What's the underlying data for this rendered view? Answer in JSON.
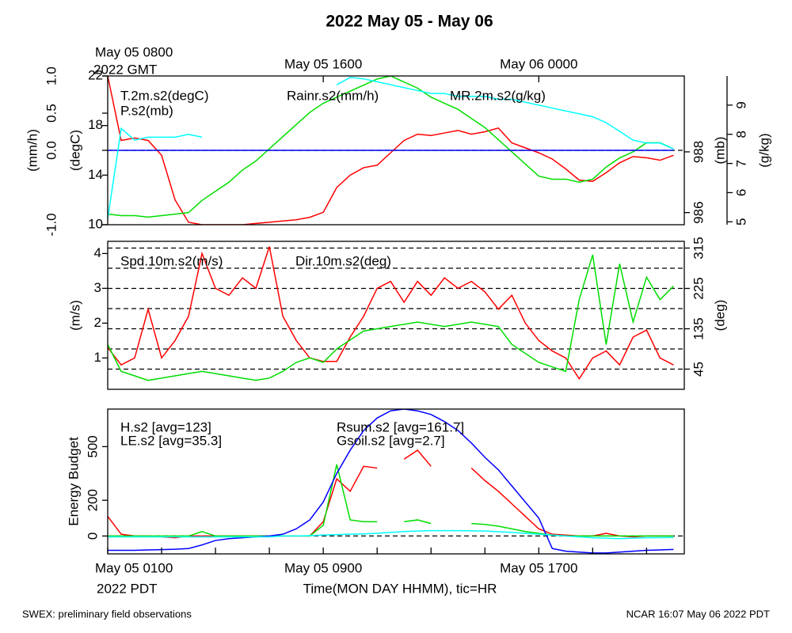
{
  "title": "2022 May 05 - May 06",
  "top_zone_label": "2022 GMT",
  "bottom_zone_label": "2022 PDT",
  "xlabel": "Time(MON DAY HHMM), tic=HR",
  "footer_left": "SWEX: preliminary field observations",
  "footer_right": "NCAR 16:07 May 06 2022 PDT",
  "chart_data": [
    {
      "type": "line",
      "xlim": [
        0,
        21.4
      ],
      "top_xticks": [
        {
          "value": 0,
          "label": "May 05 0800"
        },
        {
          "value": 8,
          "label": "May 05 1600"
        },
        {
          "value": 16,
          "label": "May 06 0000"
        }
      ],
      "x": [
        0,
        0.5,
        1,
        1.5,
        2,
        2.5,
        3,
        3.5,
        4,
        4.5,
        5,
        5.5,
        6,
        6.5,
        7,
        7.5,
        8,
        8.5,
        9,
        9.5,
        10,
        10.5,
        11,
        11.5,
        12,
        12.5,
        13,
        13.5,
        14,
        14.5,
        15,
        15.5,
        16,
        16.5,
        17,
        17.5,
        18,
        18.5,
        19,
        19.5,
        20,
        20.5,
        21
      ],
      "y_axes": [
        {
          "label": "(mm/h)",
          "lim": [
            -1,
            1
          ],
          "ticks": [
            {
              "value": -1,
              "label": "-1.0"
            },
            {
              "value": 0,
              "label": "0.0"
            },
            0.5,
            {
              "value": 1,
              "label": "1.0"
            }
          ],
          "grid": [
            0
          ]
        },
        {
          "label": "(degC)",
          "lim": [
            10,
            22
          ],
          "ticks": [
            10,
            14,
            18,
            22
          ]
        },
        {
          "label": "(mb)",
          "lim": [
            985.6,
            990.5
          ],
          "ticks": [
            986,
            988
          ]
        },
        {
          "label": "(g/kg)",
          "lim": [
            4.9,
            10
          ],
          "ticks": [
            5,
            6,
            7,
            8,
            9
          ]
        }
      ],
      "series": [
        {
          "name": "T.2m.s2(degC)",
          "color": "#ff0000",
          "axis": 1,
          "values": [
            22,
            16.8,
            17,
            16.8,
            15.6,
            12,
            10.2,
            10,
            10,
            10,
            10,
            10.1,
            10.2,
            10.3,
            10.4,
            10.6,
            11,
            13,
            14,
            14.6,
            14.8,
            15.8,
            16.8,
            17.3,
            17.2,
            17.4,
            17.6,
            17.3,
            17.5,
            17.8,
            16.6,
            16.2,
            15.8,
            15.3,
            14.5,
            13.6,
            13.5,
            14.2,
            15,
            15.5,
            15.4,
            15.2,
            15.6
          ]
        },
        {
          "name": "P.s2(mb)",
          "color": "#00dd00",
          "axis": 2,
          "values": [
            985.95,
            985.9,
            985.9,
            985.85,
            985.9,
            985.95,
            986,
            986.4,
            986.7,
            987,
            987.4,
            987.7,
            988.1,
            988.5,
            988.9,
            989.3,
            989.6,
            989.8,
            990,
            990.2,
            990.4,
            990.5,
            990.3,
            990.1,
            989.8,
            989.6,
            989.4,
            989.1,
            988.8,
            988.4,
            988,
            987.6,
            987.2,
            987.1,
            987.1,
            987,
            987.1,
            987.5,
            987.8,
            988,
            988.3,
            988.3,
            988.1
          ]
        },
        {
          "name": "Rainr.s2(mm/h)",
          "color": "#0000ff",
          "axis": 0,
          "values": [
            0,
            0,
            0,
            0,
            0,
            0,
            0,
            0,
            0,
            0,
            0,
            0,
            0,
            0,
            0,
            0,
            0,
            0,
            0,
            0,
            0,
            0,
            0,
            0,
            0,
            0,
            0,
            0,
            0,
            0,
            0,
            0,
            0,
            0,
            0,
            0,
            0,
            0,
            0,
            0,
            0,
            0,
            0
          ]
        },
        {
          "name": "MR.2m.s2(g/kg)",
          "color": "#00ffff",
          "axis": 3,
          "values": [
            5.1,
            8.2,
            7.8,
            7.9,
            7.9,
            7.9,
            8,
            7.9,
            null,
            null,
            null,
            null,
            null,
            null,
            null,
            null,
            null,
            9.7,
            9.95,
            9.9,
            9.8,
            9.7,
            9.6,
            9.5,
            9.4,
            9.4,
            9.3,
            9.3,
            9.3,
            9.2,
            9.2,
            9.1,
            9,
            8.9,
            8.8,
            8.7,
            8.6,
            8.4,
            8.1,
            7.8,
            7.7,
            7.7,
            7.5
          ]
        }
      ]
    },
    {
      "type": "line",
      "xlim": [
        0,
        21.4
      ],
      "x": [
        0,
        0.5,
        1,
        1.5,
        2,
        2.5,
        3,
        3.5,
        4,
        4.5,
        5,
        5.5,
        6,
        6.5,
        7,
        7.5,
        8,
        8.5,
        9,
        9.5,
        10,
        10.5,
        11,
        11.5,
        12,
        12.5,
        13,
        13.5,
        14,
        14.5,
        15,
        15.5,
        16,
        16.5,
        17,
        17.5,
        18,
        18.5,
        19,
        19.5,
        20,
        20.5,
        21
      ],
      "y_axes": [
        {
          "label": "(m/s)",
          "lim": [
            0.1,
            4.35
          ],
          "ticks": [
            1,
            2,
            3,
            4
          ]
        },
        {
          "label": "(deg)",
          "lim": [
            0,
            330
          ],
          "ticks": [
            45,
            135,
            225,
            315
          ],
          "grid": [
            45,
            90,
            135,
            180,
            225,
            270,
            315
          ]
        }
      ],
      "series": [
        {
          "name": "Spd.10m.s2(m/s)",
          "color": "#ff0000",
          "axis": 0,
          "values": [
            1.3,
            0.8,
            1,
            2.4,
            1,
            1.5,
            2.2,
            4,
            3,
            2.8,
            3.3,
            3,
            4.2,
            2.2,
            1.5,
            1,
            0.9,
            0.9,
            1.6,
            2.2,
            3,
            3.2,
            2.6,
            3.2,
            2.8,
            3.3,
            3,
            3.2,
            2.9,
            2.4,
            2.8,
            2,
            1.5,
            1.2,
            1,
            0.4,
            1,
            1.2,
            0.8,
            1.6,
            1.8,
            1,
            0.8
          ]
        },
        {
          "name": "Dir.10m.s2(deg)",
          "color": "#00dd00",
          "axis": 1,
          "values": [
            100,
            40,
            30,
            20,
            25,
            30,
            35,
            40,
            35,
            30,
            25,
            20,
            25,
            40,
            60,
            70,
            60,
            90,
            110,
            130,
            135,
            140,
            145,
            150,
            145,
            140,
            145,
            150,
            145,
            140,
            100,
            80,
            60,
            50,
            40,
            200,
            300,
            100,
            280,
            150,
            250,
            200,
            230
          ]
        }
      ]
    },
    {
      "type": "line",
      "xlim": [
        0,
        21.4
      ],
      "xticks": [
        {
          "value": 0,
          "label": "May 05 0100"
        },
        {
          "value": 8,
          "label": "May 05 0900"
        },
        {
          "value": 16,
          "label": "May 05 1700"
        }
      ],
      "xminorticks": [
        2,
        4,
        6,
        10,
        12,
        14,
        18,
        20
      ],
      "x": [
        0,
        0.5,
        1,
        1.5,
        2,
        2.5,
        3,
        3.5,
        4,
        4.5,
        5,
        5.5,
        6,
        6.5,
        7,
        7.5,
        8,
        8.5,
        9,
        9.5,
        10,
        10.5,
        11,
        11.5,
        12,
        12.5,
        13,
        13.5,
        14,
        14.5,
        15,
        15.5,
        16,
        16.5,
        17,
        17.5,
        18,
        18.5,
        19,
        19.5,
        20,
        20.5,
        21
      ],
      "y_axes": [
        {
          "label": "Energy Budget",
          "lim": [
            -100,
            710
          ],
          "ticks": [
            0,
            200,
            500
          ],
          "grid": [
            0
          ]
        }
      ],
      "series": [
        {
          "name": "H.s2 [avg=123]",
          "color": "#ff0000",
          "axis": 0,
          "values": [
            110,
            10,
            0,
            0,
            -5,
            -10,
            0,
            0,
            0,
            0,
            0,
            0,
            0,
            0,
            0,
            0,
            80,
            320,
            250,
            390,
            380,
            null,
            430,
            480,
            390,
            null,
            null,
            380,
            310,
            250,
            180,
            110,
            40,
            10,
            5,
            0,
            0,
            15,
            0,
            -5,
            0,
            0,
            0
          ]
        },
        {
          "name": "LE.s2 [avg=35.3]",
          "color": "#00dd00",
          "axis": 0,
          "values": [
            0,
            0,
            0,
            0,
            0,
            0,
            0,
            25,
            0,
            0,
            0,
            0,
            0,
            0,
            0,
            0,
            60,
            400,
            90,
            80,
            80,
            null,
            80,
            90,
            70,
            null,
            null,
            70,
            65,
            55,
            40,
            25,
            15,
            5,
            0,
            0,
            0,
            0,
            0,
            0,
            0,
            0,
            0
          ]
        },
        {
          "name": "Rsum.s2 [avg=161.7]",
          "color": "#0000ff",
          "axis": 0,
          "values": [
            -80,
            -80,
            -80,
            -78,
            -76,
            -74,
            -70,
            -50,
            -25,
            -15,
            -10,
            -5,
            0,
            10,
            40,
            90,
            190,
            350,
            480,
            590,
            660,
            700,
            710,
            700,
            680,
            640,
            590,
            520,
            440,
            370,
            280,
            190,
            100,
            -70,
            -85,
            -90,
            -95,
            -95,
            -90,
            -85,
            -80,
            -78,
            -75
          ]
        },
        {
          "name": "Gsoil.s2 [avg=2.7]",
          "color": "#00ffff",
          "axis": 0,
          "values": [
            -5,
            -5,
            -5,
            -5,
            -5,
            -5,
            -5,
            -5,
            -5,
            -5,
            -5,
            -5,
            -5,
            0,
            0,
            2,
            5,
            8,
            10,
            12,
            15,
            20,
            25,
            28,
            30,
            30,
            30,
            29,
            28,
            24,
            20,
            15,
            10,
            5,
            0,
            -5,
            -10,
            -12,
            -15,
            -12,
            -10,
            -9,
            -8
          ]
        }
      ]
    }
  ]
}
